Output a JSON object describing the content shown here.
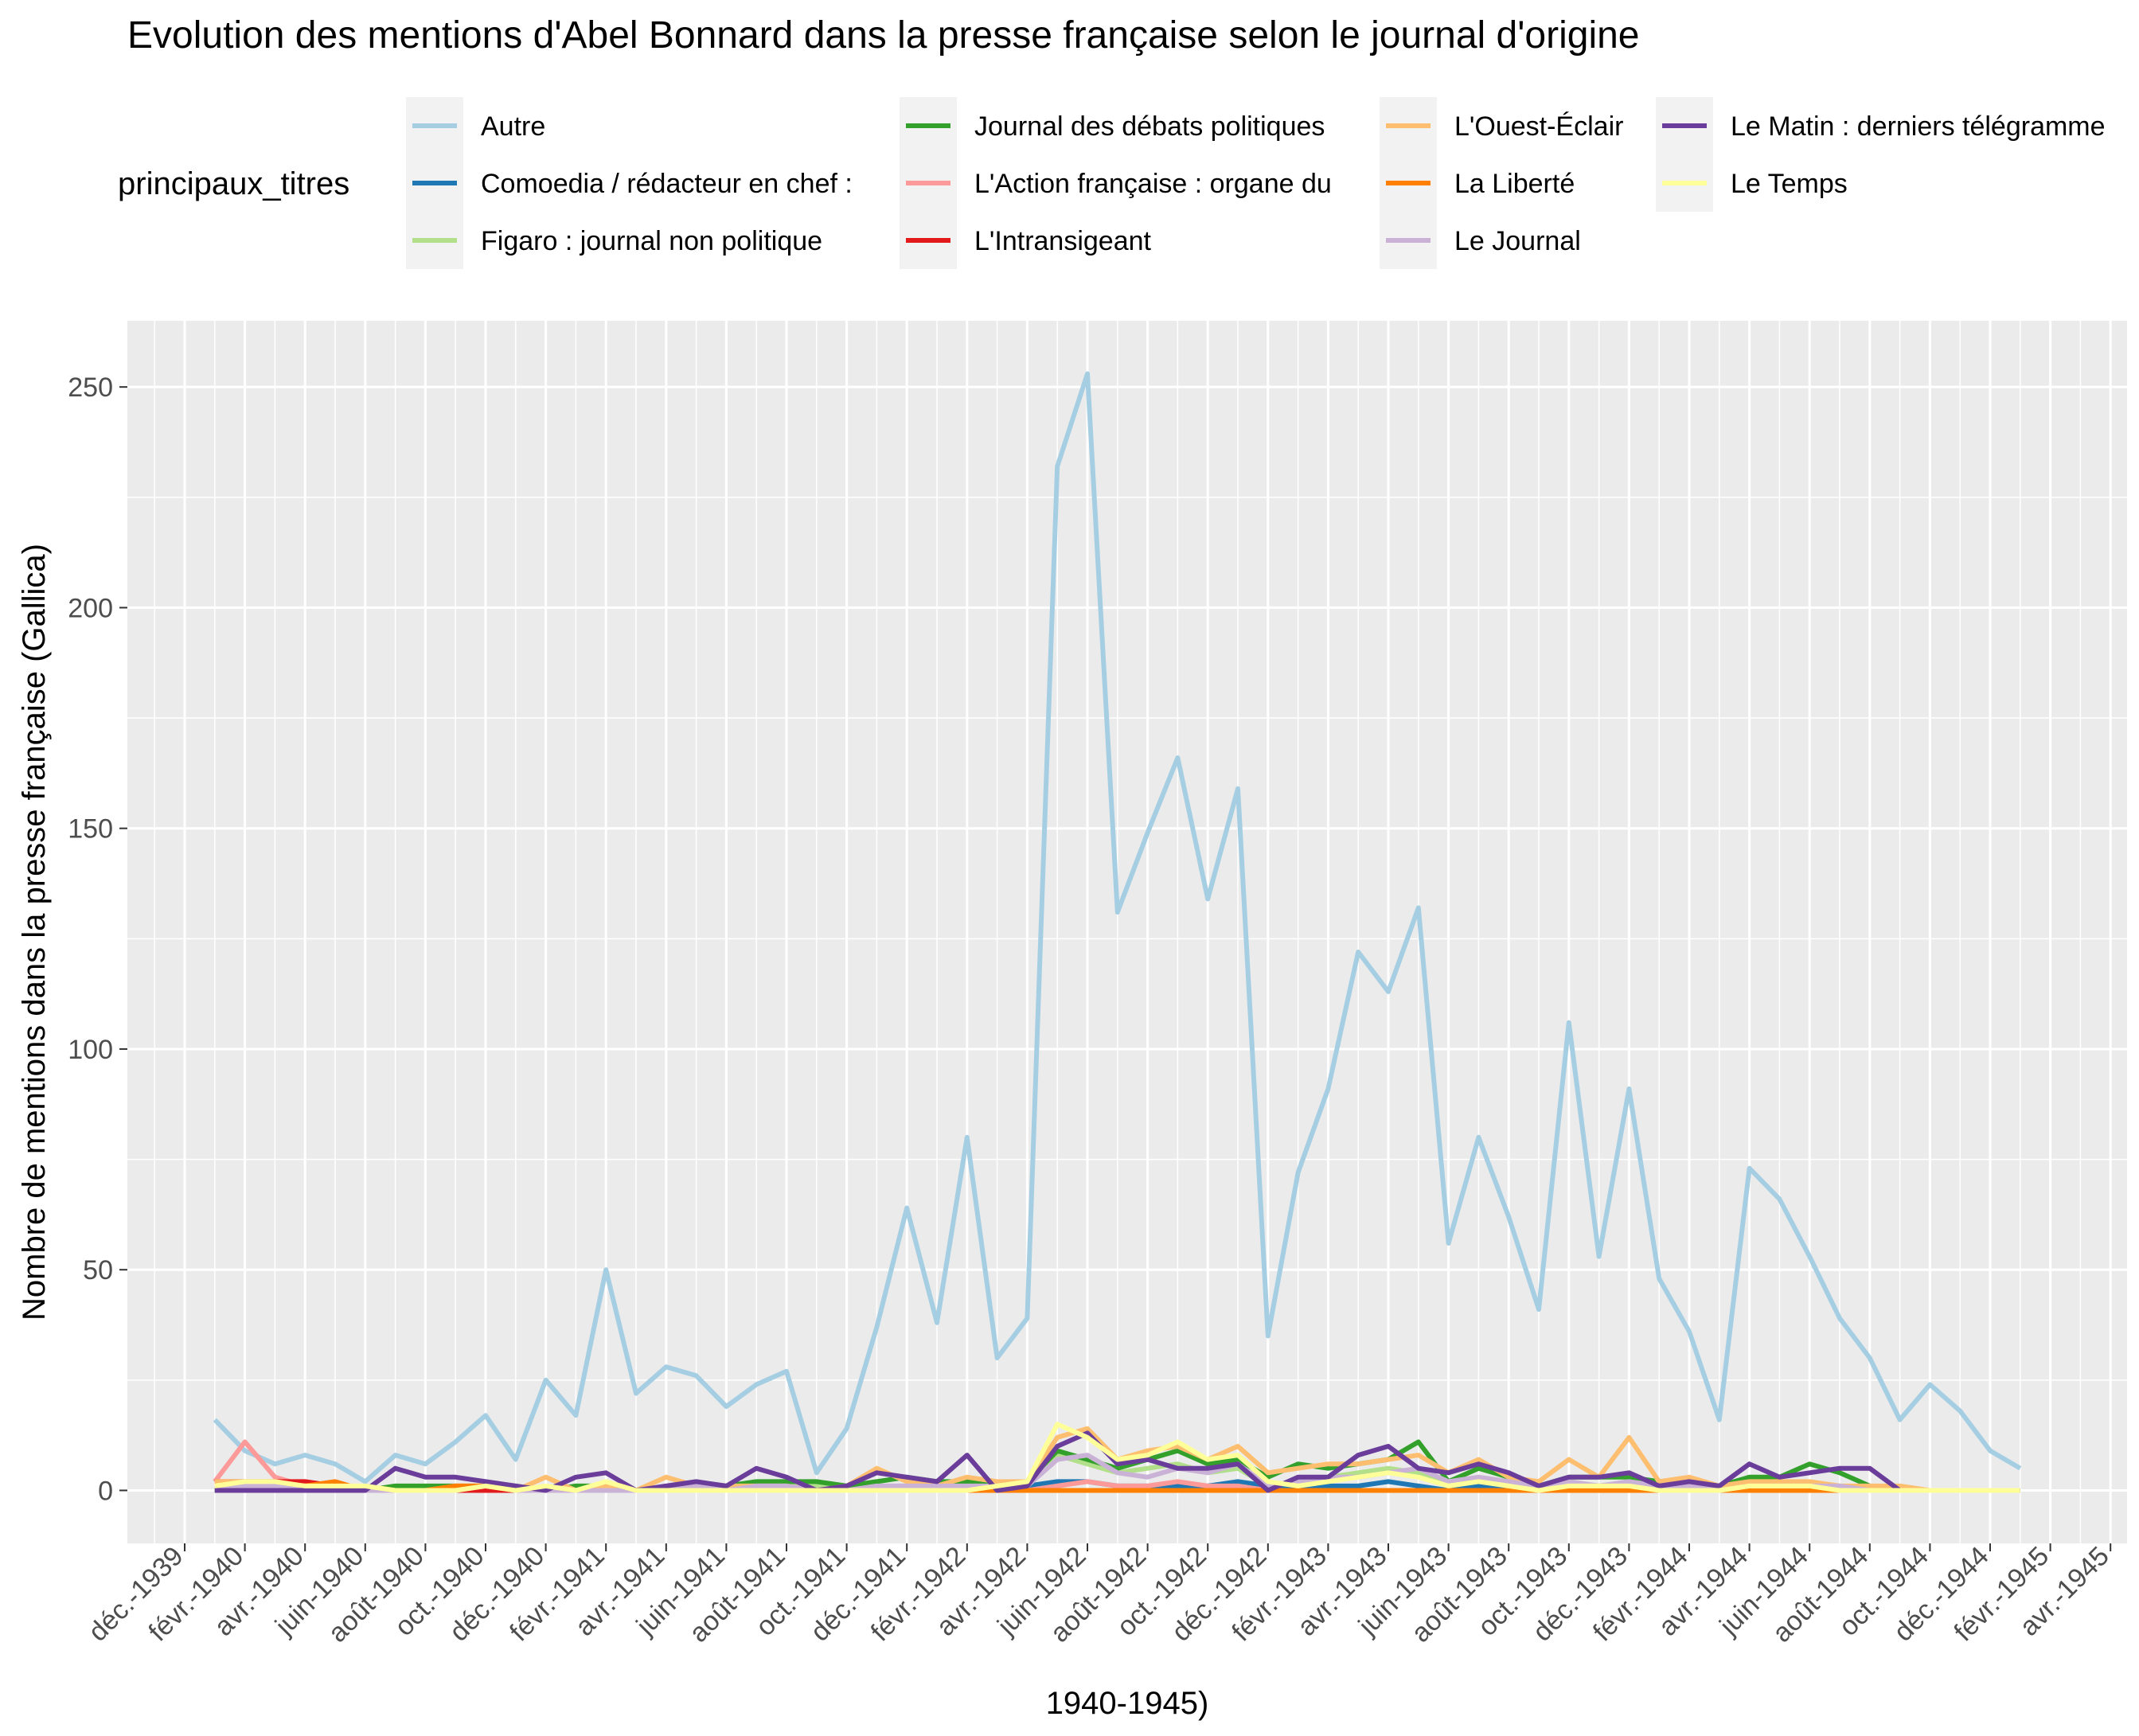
{
  "chart_data": {
    "type": "line",
    "title": "Evolution des mentions d'Abel Bonnard dans la presse française selon le journal d'origine",
    "xlabel": "1940-1945)",
    "ylabel": "Nombre de mentions dans la presse française (Gallica)",
    "ylim": [
      -12,
      265
    ],
    "y_ticks": [
      0,
      50,
      100,
      150,
      200,
      250
    ],
    "legend_title": "principaux_titres",
    "legend_placement": "top",
    "grid": true,
    "x_tick_labels": [
      "déc.-1939",
      "févr.-1940",
      "avr.-1940",
      "juin-1940",
      "août-1940",
      "oct.-1940",
      "déc.-1940",
      "févr.-1941",
      "avr.-1941",
      "juin-1941",
      "août-1941",
      "oct.-1941",
      "déc.-1941",
      "févr.-1942",
      "avr.-1942",
      "juin-1942",
      "août-1942",
      "oct.-1942",
      "déc.-1942",
      "févr.-1943",
      "avr.-1943",
      "juin-1943",
      "août-1943",
      "oct.-1943",
      "déc.-1943",
      "févr.-1944",
      "avr.-1944",
      "juin-1944",
      "août-1944",
      "oct.-1944",
      "déc.-1944",
      "févr.-1945",
      "avr.-1945"
    ],
    "x_start": "janv.-1940",
    "series": [
      {
        "name": "Autre",
        "color": "#A6CEE3",
        "values": [
          16,
          9,
          6,
          8,
          6,
          2,
          8,
          6,
          11,
          17,
          7,
          25,
          17,
          50,
          22,
          28,
          26,
          19,
          24,
          27,
          4,
          14,
          37,
          64,
          38,
          80,
          30,
          39,
          232,
          253,
          131,
          149,
          166,
          134,
          159,
          35,
          72,
          91,
          122,
          113,
          132,
          56,
          80,
          62,
          41,
          106,
          53,
          91,
          48,
          36,
          16,
          73,
          66,
          53,
          39,
          30,
          16,
          24,
          18,
          9,
          5
        ]
      },
      {
        "name": "Comoedia / rédacteur en chef :",
        "color": "#1F78B4",
        "values": [
          0,
          0,
          0,
          0,
          0,
          0,
          0,
          0,
          0,
          0,
          0,
          0,
          0,
          0,
          0,
          0,
          0,
          0,
          0,
          0,
          0,
          0,
          0,
          0,
          0,
          0,
          0,
          1,
          2,
          2,
          1,
          1,
          1,
          1,
          2,
          1,
          0,
          1,
          1,
          2,
          1,
          0,
          1,
          1,
          0,
          0,
          0,
          0,
          0,
          0,
          0,
          0,
          0,
          0,
          0,
          0,
          0,
          0,
          0,
          0,
          0
        ]
      },
      {
        "name": "Figaro : journal non politique",
        "color": "#B2DF8A",
        "values": [
          0,
          0,
          1,
          0,
          0,
          0,
          1,
          0,
          1,
          1,
          1,
          0,
          0,
          1,
          0,
          0,
          1,
          0,
          1,
          1,
          1,
          1,
          1,
          1,
          1,
          0,
          1,
          1,
          8,
          6,
          4,
          5,
          6,
          4,
          5,
          1,
          2,
          3,
          4,
          5,
          4,
          2,
          3,
          2,
          1,
          2,
          1,
          2,
          1,
          1,
          0,
          1,
          1,
          1,
          1,
          0,
          0,
          0,
          0,
          0,
          0
        ]
      },
      {
        "name": "Journal des débats politiques",
        "color": "#33A02C",
        "values": [
          0,
          0,
          0,
          0,
          0,
          0,
          1,
          1,
          1,
          0,
          0,
          0,
          1,
          1,
          0,
          0,
          1,
          1,
          2,
          2,
          2,
          1,
          2,
          3,
          2,
          2,
          1,
          2,
          9,
          7,
          5,
          7,
          9,
          6,
          7,
          3,
          6,
          5,
          6,
          7,
          11,
          2,
          5,
          3,
          1,
          3,
          3,
          3,
          2,
          2,
          1,
          3,
          3,
          6,
          4,
          1,
          0,
          0,
          0,
          0,
          0
        ]
      },
      {
        "name": "L'Action française : organe du",
        "color": "#FB9A99",
        "values": [
          2,
          11,
          3,
          1,
          1,
          0,
          0,
          0,
          0,
          0,
          0,
          0,
          0,
          0,
          0,
          0,
          0,
          0,
          0,
          0,
          0,
          0,
          0,
          0,
          0,
          0,
          0,
          0,
          1,
          2,
          1,
          1,
          2,
          1,
          1,
          0,
          0,
          0,
          0,
          0,
          0,
          0,
          0,
          0,
          0,
          0,
          0,
          0,
          0,
          0,
          0,
          0,
          0,
          0,
          0,
          0,
          0,
          0,
          0,
          0,
          0
        ]
      },
      {
        "name": "L'Intransigeant",
        "color": "#E31A1C",
        "values": [
          2,
          2,
          2,
          2,
          1,
          0,
          0,
          0,
          0,
          0,
          0,
          0,
          0,
          0,
          0,
          0,
          0,
          0,
          0,
          0,
          0,
          0,
          0,
          0,
          0,
          0,
          0,
          0,
          0,
          0,
          0,
          0,
          0,
          0,
          0,
          0,
          0,
          0,
          0,
          0,
          0,
          0,
          0,
          0,
          0,
          0,
          0,
          0,
          0,
          0,
          0,
          0,
          0,
          0,
          0,
          0,
          0,
          0,
          0,
          0,
          0
        ]
      },
      {
        "name": "L'Ouest-Éclair",
        "color": "#FDBF6F",
        "values": [
          2,
          2,
          1,
          1,
          0,
          1,
          0,
          0,
          1,
          1,
          0,
          3,
          0,
          1,
          0,
          3,
          1,
          1,
          1,
          1,
          0,
          1,
          5,
          2,
          1,
          3,
          2,
          2,
          12,
          14,
          7,
          9,
          10,
          7,
          10,
          4,
          5,
          6,
          6,
          7,
          8,
          4,
          7,
          3,
          2,
          7,
          3,
          12,
          2,
          3,
          1,
          2,
          2,
          2,
          1,
          1,
          1,
          0,
          0,
          0,
          0
        ]
      },
      {
        "name": "La Liberté",
        "color": "#FF7F00",
        "values": [
          1,
          1,
          1,
          1,
          2,
          0,
          0,
          0,
          1,
          1,
          0,
          0,
          0,
          0,
          0,
          0,
          0,
          0,
          0,
          0,
          0,
          0,
          0,
          0,
          0,
          0,
          0,
          0,
          0,
          0,
          0,
          0,
          0,
          0,
          0,
          0,
          0,
          0,
          0,
          0,
          0,
          0,
          0,
          0,
          0,
          0,
          0,
          0,
          0,
          0,
          0,
          0,
          0,
          0,
          0,
          0,
          0,
          0,
          0,
          0,
          0
        ]
      },
      {
        "name": "Le Journal",
        "color": "#CAB2D6",
        "values": [
          1,
          1,
          1,
          0,
          0,
          0,
          0,
          0,
          0,
          1,
          0,
          0,
          0,
          0,
          0,
          0,
          1,
          0,
          1,
          1,
          0,
          0,
          1,
          1,
          1,
          1,
          1,
          1,
          7,
          8,
          4,
          3,
          5,
          4,
          6,
          1,
          2,
          3,
          3,
          4,
          5,
          2,
          3,
          2,
          1,
          2,
          1,
          2,
          1,
          1,
          0,
          1,
          1,
          1,
          1,
          0,
          0,
          0,
          0,
          0,
          0
        ]
      },
      {
        "name": "Le Matin : derniers télégramme",
        "color": "#6A3D9A",
        "values": [
          0,
          0,
          0,
          0,
          0,
          0,
          5,
          3,
          3,
          2,
          1,
          0,
          3,
          4,
          0,
          1,
          2,
          1,
          5,
          3,
          0,
          1,
          4,
          3,
          2,
          8,
          0,
          1,
          10,
          13,
          6,
          7,
          5,
          5,
          6,
          0,
          3,
          3,
          8,
          10,
          5,
          4,
          6,
          4,
          1,
          3,
          3,
          4,
          1,
          2,
          1,
          6,
          3,
          4,
          5,
          5,
          0,
          0,
          0,
          0,
          0
        ]
      },
      {
        "name": "Le Temps",
        "color": "#FFFF99",
        "values": [
          1,
          2,
          2,
          1,
          1,
          1,
          0,
          0,
          0,
          1,
          0,
          1,
          0,
          2,
          0,
          0,
          0,
          0,
          0,
          0,
          0,
          0,
          0,
          0,
          0,
          0,
          1,
          2,
          15,
          12,
          7,
          8,
          11,
          7,
          8,
          2,
          1,
          2,
          3,
          4,
          3,
          1,
          2,
          1,
          0,
          1,
          1,
          1,
          0,
          0,
          0,
          1,
          1,
          1,
          0,
          0,
          0,
          0,
          0,
          0,
          0
        ]
      }
    ]
  }
}
